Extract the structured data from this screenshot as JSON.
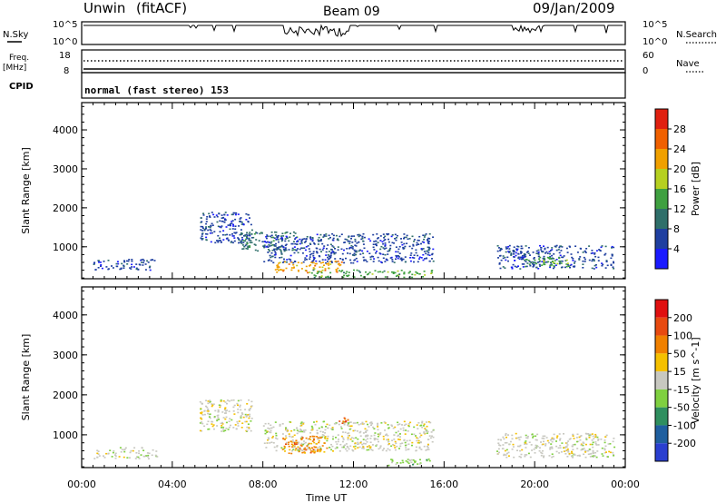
{
  "header": {
    "station": "Unwin",
    "fit": "(fitACF)",
    "beam": "Beam 09",
    "date": "09/Jan/2009"
  },
  "top_panels": {
    "nsky_label": "N.Sky",
    "nsky_top": "10^5",
    "nsky_bottom": "10^0",
    "nsearch_label": "N.Search",
    "nsearch_top": "10^5",
    "nsearch_bottom": "10^0",
    "freq_label_1": "Freq.",
    "freq_label_2": "[MHz]",
    "freq_top": "18",
    "freq_bottom": "8",
    "nave_label": "Nave",
    "nave_top": "60",
    "nave_bottom": "0",
    "cpid_label": "CPID",
    "cpid_text": "normal (fast stereo) 153"
  },
  "chart_data": [
    {
      "type": "heatmap",
      "name": "power",
      "ylabel": "Slant Range [km]",
      "yticks": [
        "1000",
        "2000",
        "3000",
        "4000"
      ],
      "ylim": [
        180,
        4700
      ],
      "colorbar_label": "Power [dB]",
      "colorbar_ticks": [
        "4",
        "8",
        "12",
        "16",
        "20",
        "24",
        "28"
      ],
      "colorbar_colors": [
        "#1a1aff",
        "#1f3fa0",
        "#2f6f6a",
        "#3fa040",
        "#b6d020",
        "#f0a000",
        "#f06000",
        "#e02010"
      ],
      "features": [
        {
          "t0": 0.5,
          "t1": 3.3,
          "r0": 420,
          "r1": 700,
          "level": 1
        },
        {
          "t0": 5.2,
          "t1": 7.5,
          "r0": 1100,
          "r1": 1900,
          "level": 1
        },
        {
          "t0": 7.0,
          "t1": 9.5,
          "r0": 900,
          "r1": 1400,
          "level": 2
        },
        {
          "t0": 8.0,
          "t1": 15.5,
          "r0": 600,
          "r1": 1350,
          "level": 1
        },
        {
          "t0": 8.5,
          "t1": 11.5,
          "r0": 350,
          "r1": 650,
          "level": 5
        },
        {
          "t0": 10.0,
          "t1": 15.5,
          "r0": 230,
          "r1": 420,
          "level": 3
        },
        {
          "t0": 18.3,
          "t1": 23.5,
          "r0": 450,
          "r1": 1050,
          "level": 1
        },
        {
          "t0": 19.5,
          "t1": 21.5,
          "r0": 500,
          "r1": 750,
          "level": 3
        }
      ]
    },
    {
      "type": "heatmap",
      "name": "velocity",
      "ylabel": "Slant Range [km]",
      "yticks": [
        "1000",
        "2000",
        "3000",
        "4000"
      ],
      "ylim": [
        180,
        4700
      ],
      "colorbar_label": "Velocity [m s^-1]",
      "colorbar_ticks": [
        "200",
        "100",
        "50",
        "15",
        "-15",
        "-50",
        "-100",
        "-200"
      ],
      "colorbar_colors": [
        "#2a3fd0",
        "#1f5f9f",
        "#2f8f5f",
        "#7fd040",
        "#c8c8c0",
        "#f5c000",
        "#f08000",
        "#e84a10",
        "#e01010"
      ],
      "features": [
        {
          "t0": 0.5,
          "t1": 3.3,
          "r0": 420,
          "r1": 700,
          "level": 4
        },
        {
          "t0": 5.2,
          "t1": 7.5,
          "r0": 1100,
          "r1": 1900,
          "level": 4
        },
        {
          "t0": 8.0,
          "t1": 15.5,
          "r0": 600,
          "r1": 1350,
          "level": 4
        },
        {
          "t0": 8.8,
          "t1": 10.8,
          "r0": 550,
          "r1": 1000,
          "level": 6
        },
        {
          "t0": 11.2,
          "t1": 11.8,
          "r0": 1300,
          "r1": 1450,
          "level": 7
        },
        {
          "t0": 13.5,
          "t1": 15.5,
          "r0": 250,
          "r1": 420,
          "level": 3
        },
        {
          "t0": 18.3,
          "t1": 23.5,
          "r0": 450,
          "r1": 1050,
          "level": 4
        }
      ]
    }
  ],
  "xaxis": {
    "ticks": [
      "00:00",
      "04:00",
      "08:00",
      "12:00",
      "16:00",
      "20:00",
      "00:00"
    ],
    "label": "Time UT"
  }
}
